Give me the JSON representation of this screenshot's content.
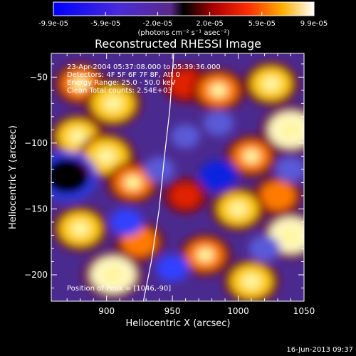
{
  "colorbar": {
    "tick_labels": [
      "-9.9e-05",
      "-5.9e-05",
      "-2.0e-05",
      "2.0e-05",
      "5.9e-05",
      "9.9e-05"
    ],
    "unit_label": "(photons cm⁻² s⁻¹ asec⁻²)"
  },
  "annotations": {
    "time_range": "23-Apr-2004 05:37:08.000 to 05:39:36.000",
    "detectors": "Detectors: 4F 5F 6F 7F 8F, Att 0",
    "energy_range": "Energy Range: 25.0 - 50.0 keV",
    "algorithm": "Clean     Total counts: 2.54E+03",
    "peak_position": "Position of Peak = [1046,-90]"
  },
  "footer_timestamp": "16-Jun-2013 09:37",
  "chart_data": {
    "type": "heatmap",
    "title": "Reconstructed RHESSI Image",
    "xlabel": "Heliocentric X (arcsec)",
    "ylabel": "Heliocentric Y (arcsec)",
    "xlim": [
      858,
      1050
    ],
    "ylim": [
      -220,
      -32
    ],
    "x_ticks": [
      900,
      950,
      1000,
      1050
    ],
    "x_tick_labels": [
      "900",
      "950",
      "1000",
      "1050"
    ],
    "y_ticks": [
      -50,
      -100,
      -150,
      -200
    ],
    "y_tick_labels": [
      "−50",
      "−100",
      "−150",
      "−200"
    ],
    "colormap": "red-temperature with blue negative",
    "color_range": [
      -9.9e-05,
      9.9e-05
    ],
    "limb_curve": [
      [
        928,
        -220
      ],
      [
        934,
        -190
      ],
      [
        940,
        -150
      ],
      [
        944,
        -110
      ],
      [
        948,
        -75
      ],
      [
        951,
        -32
      ]
    ],
    "blobs": [
      {
        "x": 880,
        "y": -55,
        "v": 0.7
      },
      {
        "x": 905,
        "y": -70,
        "v": 0.9
      },
      {
        "x": 878,
        "y": -95,
        "v": 0.8
      },
      {
        "x": 900,
        "y": -110,
        "v": 0.9
      },
      {
        "x": 920,
        "y": -130,
        "v": 0.7
      },
      {
        "x": 880,
        "y": -165,
        "v": 0.85
      },
      {
        "x": 905,
        "y": -200,
        "v": 1.0
      },
      {
        "x": 925,
        "y": -175,
        "v": 0.6
      },
      {
        "x": 960,
        "y": -55,
        "v": 0.5
      },
      {
        "x": 985,
        "y": -60,
        "v": 0.75
      },
      {
        "x": 1025,
        "y": -55,
        "v": 0.8
      },
      {
        "x": 1040,
        "y": -90,
        "v": 1.0
      },
      {
        "x": 1010,
        "y": -110,
        "v": 0.7
      },
      {
        "x": 1030,
        "y": -140,
        "v": 0.6
      },
      {
        "x": 1000,
        "y": -150,
        "v": 0.8
      },
      {
        "x": 1040,
        "y": -170,
        "v": 0.95
      },
      {
        "x": 975,
        "y": -185,
        "v": 0.7
      },
      {
        "x": 1010,
        "y": -205,
        "v": 0.85
      },
      {
        "x": 960,
        "y": -140,
        "v": 0.4
      },
      {
        "x": 870,
        "y": -125,
        "v": -0.9
      },
      {
        "x": 915,
        "y": -160,
        "v": -0.5
      },
      {
        "x": 940,
        "y": -120,
        "v": -0.4
      },
      {
        "x": 950,
        "y": -195,
        "v": -0.5
      },
      {
        "x": 985,
        "y": -125,
        "v": -0.7
      },
      {
        "x": 985,
        "y": -85,
        "v": -0.4
      },
      {
        "x": 1020,
        "y": -180,
        "v": -0.45
      },
      {
        "x": 1040,
        "y": -120,
        "v": -0.4
      },
      {
        "x": 960,
        "y": -95,
        "v": -0.35
      }
    ]
  }
}
